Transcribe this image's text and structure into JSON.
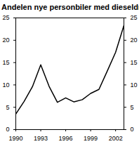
{
  "chart_data": {
    "type": "line",
    "title": "Andelen nye personbiler med dieseldrift",
    "x": [
      1990,
      1991,
      1992,
      1993,
      1994,
      1995,
      1996,
      1997,
      1998,
      1999,
      2000,
      2001,
      2002,
      2003
    ],
    "values": [
      3.5,
      6.3,
      9.6,
      14.5,
      9.7,
      6.1,
      7.1,
      6.2,
      6.7,
      8.1,
      9.0,
      13.1,
      17.3,
      23.3
    ],
    "color": "#000000",
    "xlim": [
      1990,
      2003
    ],
    "xticks": [
      1990,
      1993,
      1996,
      1999,
      2002
    ],
    "ylim": [
      0,
      25
    ],
    "yticks": [
      0,
      5,
      10,
      15,
      20,
      25
    ],
    "grid": false
  }
}
